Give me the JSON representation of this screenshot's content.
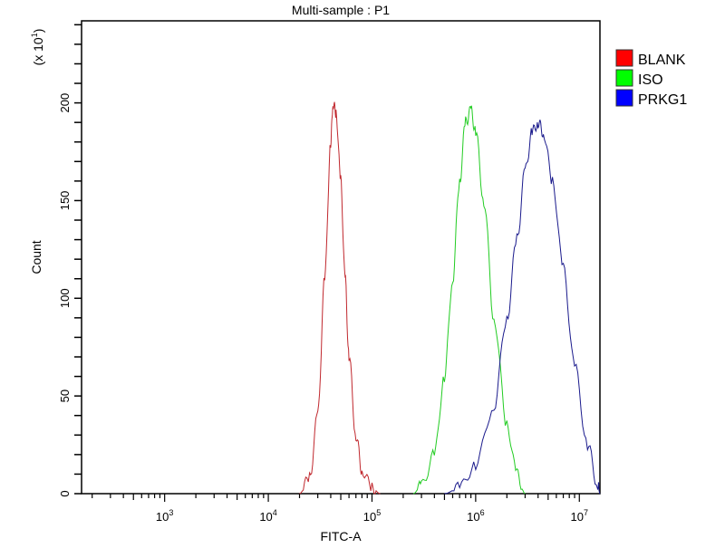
{
  "chart_data": {
    "type": "line",
    "title": "Multi-sample : P1",
    "xlabel": "FITC-A",
    "ylabel": "Count",
    "y_multiplier": "(x 10",
    "y_multiplier_exp": "1",
    "y_multiplier_close": ")",
    "x_scale": "log",
    "xlim": [
      158,
      15800000
    ],
    "ylim": [
      0,
      242
    ],
    "x_ticks": [
      {
        "base": "10",
        "exp": "3",
        "value": 1000
      },
      {
        "base": "10",
        "exp": "4",
        "value": 10000
      },
      {
        "base": "10",
        "exp": "5",
        "value": 100000
      },
      {
        "base": "10",
        "exp": "6",
        "value": 1000000
      },
      {
        "base": "10",
        "exp": "7",
        "value": 10000000
      }
    ],
    "y_ticks": [
      "0",
      "50",
      "100",
      "150",
      "200"
    ],
    "grid": false,
    "legend_placement": "right",
    "series": [
      {
        "name": "BLANK",
        "color": "#c0282e",
        "legend_color": "#ff0000",
        "x": [
          20000,
          25000,
          30000,
          35000,
          40000,
          42000,
          45000,
          50000,
          55000,
          60000,
          70000,
          80000,
          100000,
          120000
        ],
        "y": [
          0,
          8,
          40,
          110,
          180,
          200,
          195,
          160,
          110,
          70,
          30,
          12,
          3,
          0
        ]
      },
      {
        "name": "ISO",
        "color": "#22cc22",
        "legend_color": "#00ff00",
        "x": [
          250000,
          300000,
          400000,
          500000,
          600000,
          700000,
          800000,
          900000,
          1000000,
          1200000,
          1500000,
          2000000,
          2500000,
          3000000
        ],
        "y": [
          0,
          4,
          20,
          60,
          110,
          160,
          190,
          196,
          185,
          150,
          90,
          35,
          10,
          0
        ]
      },
      {
        "name": "PRKG1",
        "color": "#1a1a8c",
        "legend_color": "#0000ff",
        "x": [
          500000,
          700000,
          1000000,
          1500000,
          2000000,
          2500000,
          3000000,
          3500000,
          4000000,
          4500000,
          5500000,
          7000000,
          9000000,
          12000000,
          15000000,
          15800000
        ],
        "y": [
          0,
          3,
          15,
          45,
          90,
          130,
          165,
          185,
          190,
          185,
          160,
          115,
          65,
          25,
          5,
          0
        ]
      }
    ]
  }
}
